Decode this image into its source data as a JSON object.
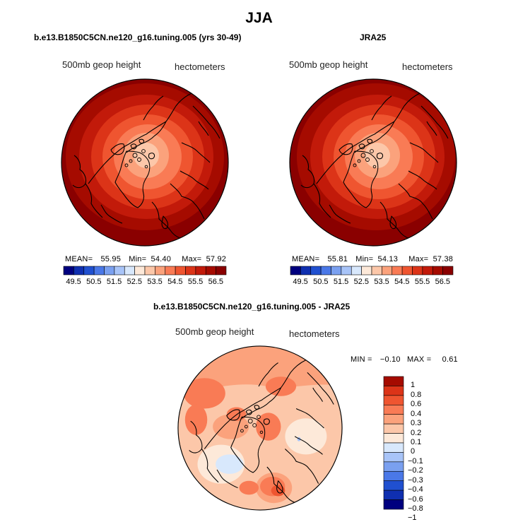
{
  "main_title": "JJA",
  "colors": {
    "scale_abs": [
      "#00007f",
      "#0f2fb0",
      "#2050d0",
      "#4a78e8",
      "#7aa0f0",
      "#a8c4f8",
      "#d8e8fc",
      "#fde9d9",
      "#fcc7a9",
      "#fba27c",
      "#f97b55",
      "#ef5530",
      "#dc3418",
      "#c21a0a",
      "#a50b00",
      "#8a0000"
    ],
    "scale_diff": [
      "#00007f",
      "#0f2fb0",
      "#2050d0",
      "#4a78e8",
      "#7aa0f0",
      "#a8c4f8",
      "#d8e8fc",
      "#fde9d9",
      "#fcc7a9",
      "#fba27c",
      "#f97b55",
      "#ef5530",
      "#dc3418",
      "#a50b00"
    ],
    "land_outline": "#000000"
  },
  "panels": {
    "model": {
      "title": "b.e13.B1850C5CN.ne120_g16.tuning.005 (yrs 30-49)",
      "variable": "500mb geop height",
      "units": "hectometers",
      "mean_label": "MEAN=",
      "mean": "55.95",
      "min_label": "Min=",
      "min": "54.40",
      "max_label": "Max=",
      "max": "57.92",
      "colorbar_ticks": [
        "49.5",
        "50.5",
        "51.5",
        "52.5",
        "53.5",
        "54.5",
        "55.5",
        "56.5"
      ]
    },
    "obs": {
      "title": "JRA25",
      "variable": "500mb geop height",
      "units": "hectometers",
      "mean_label": "MEAN=",
      "mean": "55.81",
      "min_label": "Min=",
      "min": "54.13",
      "max_label": "Max=",
      "max": "57.38",
      "colorbar_ticks": [
        "49.5",
        "50.5",
        "51.5",
        "52.5",
        "53.5",
        "54.5",
        "55.5",
        "56.5"
      ]
    },
    "diff": {
      "title": "b.e13.B1850C5CN.ne120_g16.tuning.005 - JRA25",
      "variable": "500mb geop height",
      "units": "hectometers",
      "min_label": "MIN =",
      "min": "−0.10",
      "max_label": "MAX =",
      "max": "0.61",
      "colorbar_ticks": [
        "1",
        "0.8",
        "0.6",
        "0.4",
        "0.3",
        "0.2",
        "0.1",
        "0",
        "−0.1",
        "−0.2",
        "−0.3",
        "−0.4",
        "−0.6",
        "−0.8",
        "−1"
      ]
    }
  }
}
